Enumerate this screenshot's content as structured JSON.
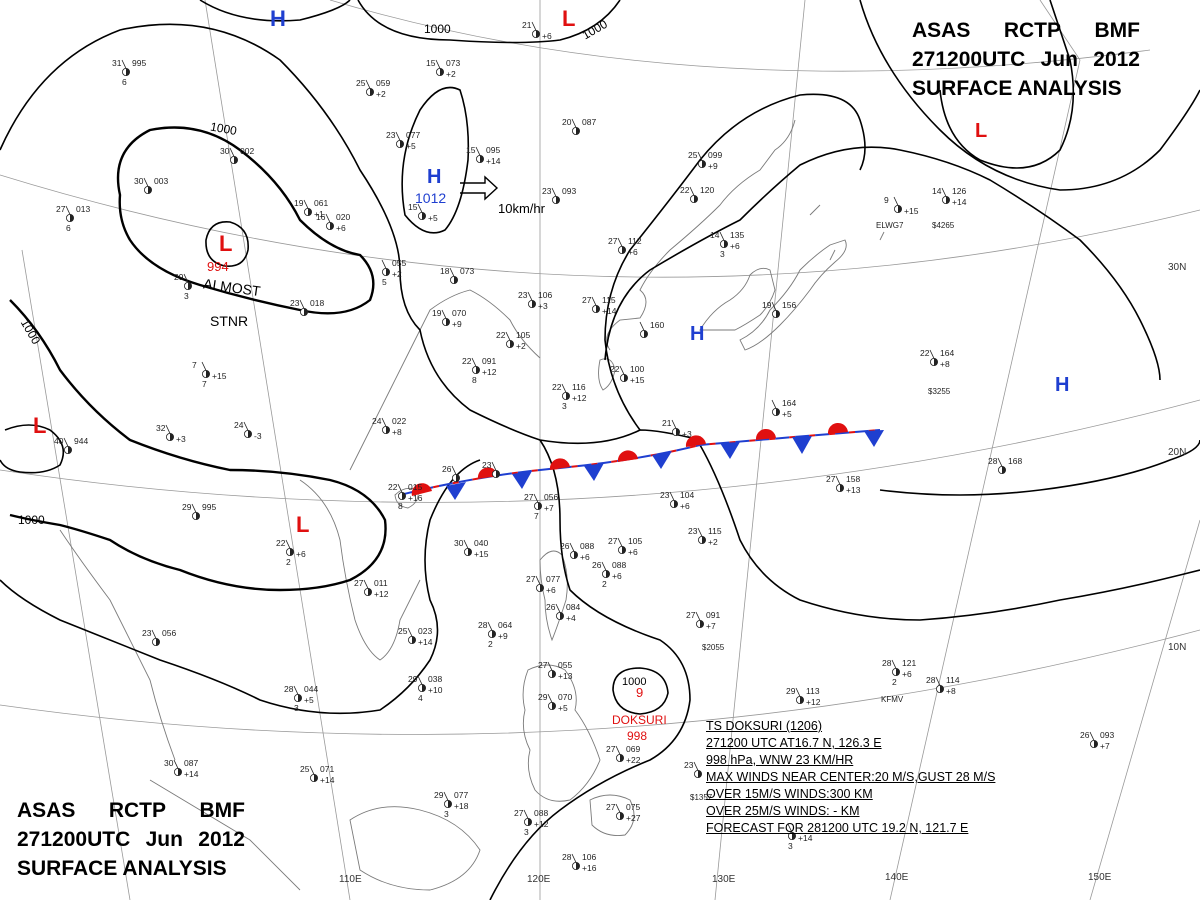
{
  "header": {
    "agency": "ASAS",
    "station": "RCTP",
    "office": "BMF",
    "datetime": "271200UTC",
    "month": "Jun",
    "year": "2012",
    "title": "SURFACE ANALYSIS"
  },
  "latitude_labels": [
    "30N",
    "20N",
    "10N"
  ],
  "longitude_labels": [
    "110E",
    "120E",
    "130E",
    "140E",
    "150E"
  ],
  "isobar_labels": [
    "1000",
    "1000",
    "1000",
    "1000",
    "1000"
  ],
  "pressure_centers": [
    {
      "type": "H",
      "value": "",
      "color": "#1f3fd0"
    },
    {
      "type": "L",
      "value": "",
      "color": "#e01010"
    },
    {
      "type": "H",
      "value": "1012",
      "color": "#1f3fd0"
    },
    {
      "type": "L",
      "value": "994",
      "color": "#e01010"
    },
    {
      "type": "L",
      "value": "",
      "color": "#e01010"
    },
    {
      "type": "L",
      "value": "",
      "color": "#e01010"
    },
    {
      "type": "L",
      "value": "",
      "color": "#e01010"
    },
    {
      "type": "H",
      "value": "",
      "color": "#1f3fd0"
    },
    {
      "type": "H",
      "value": "",
      "color": "#1f3fd0"
    }
  ],
  "annotations": {
    "almost": "ALMOST",
    "stnr": "STNR",
    "speed": "10km/hr",
    "typhoon_name": "DOKSURI",
    "typhoon_pressure": "998",
    "typhoon_isobar": "1000",
    "typhoon_symbol": "9"
  },
  "storm_info": [
    "TS DOKSURI (1206)",
    "271200 UTC  AT16.7 N, 126.3 E",
    "998 hPa, WNW  23 KM/HR",
    "MAX WINDS NEAR CENTER:20 M/S,GUST 28 M/S",
    "OVER 15M/S WINDS:300 KM",
    "OVER 25M/S WINDS:  - KM",
    "FORECAST FOR 281200 UTC 19.2 N, 121.7 E"
  ],
  "station_obs": [
    {
      "t": "31",
      "p": "995",
      "d": "",
      "w": "6"
    },
    {
      "t": "25",
      "p": "059",
      "d": "+2",
      "w": ""
    },
    {
      "t": "15",
      "p": "073",
      "d": "+2",
      "w": ""
    },
    {
      "t": "21",
      "p": "",
      "d": "+6",
      "w": ""
    },
    {
      "t": "23",
      "p": "077",
      "d": "+5",
      "w": ""
    },
    {
      "t": "15",
      "p": "095",
      "d": "+14",
      "w": ""
    },
    {
      "t": "20",
      "p": "087",
      "d": "",
      "w": ""
    },
    {
      "t": "30",
      "p": "003",
      "d": "",
      "w": ""
    },
    {
      "t": "30",
      "p": "002",
      "d": "",
      "w": ""
    },
    {
      "t": "27",
      "p": "013",
      "d": "",
      "w": "6"
    },
    {
      "t": "19",
      "p": "061",
      "d": "+1",
      "w": ""
    },
    {
      "t": "16",
      "p": "020",
      "d": "+6",
      "w": ""
    },
    {
      "t": "15",
      "p": "",
      "d": "+5",
      "w": ""
    },
    {
      "t": "23",
      "p": "093",
      "d": "",
      "w": ""
    },
    {
      "t": "25",
      "p": "099",
      "d": "+9",
      "w": ""
    },
    {
      "t": "22",
      "p": "120",
      "d": "",
      "w": ""
    },
    {
      "t": "14",
      "p": "135",
      "d": "+6",
      "w": "3"
    },
    {
      "t": "27",
      "p": "112",
      "d": "+6",
      "w": ""
    },
    {
      "t": "29",
      "p": "",
      "d": "",
      "w": "3"
    },
    {
      "t": "",
      "p": "055",
      "d": "+2",
      "w": "5"
    },
    {
      "t": "18",
      "p": "073",
      "d": "",
      "w": ""
    },
    {
      "t": "23",
      "p": "018",
      "d": "",
      "w": ""
    },
    {
      "t": "23",
      "p": "106",
      "d": "+3",
      "w": ""
    },
    {
      "t": "27",
      "p": "115",
      "d": "+14",
      "w": ""
    },
    {
      "t": "19",
      "p": "070",
      "d": "+9",
      "w": ""
    },
    {
      "t": "22",
      "p": "105",
      "d": "+2",
      "w": ""
    },
    {
      "t": "22",
      "p": "091",
      "d": "+12",
      "w": "8"
    },
    {
      "t": "22",
      "p": "116",
      "d": "+12",
      "w": "3"
    },
    {
      "t": "22",
      "p": "100",
      "d": "+15",
      "w": ""
    },
    {
      "t": "",
      "p": "160",
      "d": "",
      "w": ""
    },
    {
      "t": "19",
      "p": "156",
      "d": "",
      "w": ""
    },
    {
      "t": "7",
      "p": "",
      "d": "+15",
      "w": "7"
    },
    {
      "t": "22",
      "p": "164",
      "d": "+8",
      "w": ""
    },
    {
      "t": "9",
      "p": "",
      "d": "+15",
      "w": ""
    },
    {
      "t": "14",
      "p": "126",
      "d": "+14",
      "w": ""
    },
    {
      "t": "24",
      "p": "",
      "d": "-3",
      "w": ""
    },
    {
      "t": "32",
      "p": "",
      "d": "+3",
      "w": ""
    },
    {
      "t": "24",
      "p": "022",
      "d": "+8",
      "w": ""
    },
    {
      "t": "40",
      "p": "944",
      "d": "",
      "w": ""
    },
    {
      "t": "21",
      "p": "",
      "d": "+3",
      "w": ""
    },
    {
      "t": "",
      "p": "164",
      "d": "+5",
      "w": ""
    },
    {
      "t": "26",
      "p": "",
      "d": "",
      "w": ""
    },
    {
      "t": "23",
      "p": "",
      "d": "",
      "w": ""
    },
    {
      "t": "27",
      "p": "158",
      "d": "+13",
      "w": ""
    },
    {
      "t": "28",
      "p": "168",
      "d": "",
      "w": ""
    },
    {
      "t": "22",
      "p": "015",
      "d": "+16",
      "w": "8"
    },
    {
      "t": "27",
      "p": "056",
      "d": "+7",
      "w": "7"
    },
    {
      "t": "23",
      "p": "104",
      "d": "+6",
      "w": ""
    },
    {
      "t": "29",
      "p": "995",
      "d": "",
      "w": ""
    },
    {
      "t": "22",
      "p": "",
      "d": "+6",
      "w": "2"
    },
    {
      "t": "30",
      "p": "040",
      "d": "+15",
      "w": ""
    },
    {
      "t": "26",
      "p": "088",
      "d": "+6",
      "w": ""
    },
    {
      "t": "27",
      "p": "105",
      "d": "+6",
      "w": ""
    },
    {
      "t": "23",
      "p": "115",
      "d": "+2",
      "w": ""
    },
    {
      "t": "27",
      "p": "011",
      "d": "+12",
      "w": ""
    },
    {
      "t": "27",
      "p": "077",
      "d": "+6",
      "w": ""
    },
    {
      "t": "26",
      "p": "088",
      "d": "+6",
      "w": "2"
    },
    {
      "t": "26",
      "p": "084",
      "d": "+4",
      "w": ""
    },
    {
      "t": "27",
      "p": "091",
      "d": "+7",
      "w": ""
    },
    {
      "t": "23",
      "p": "056",
      "d": "",
      "w": ""
    },
    {
      "t": "25",
      "p": "023",
      "d": "+14",
      "w": ""
    },
    {
      "t": "28",
      "p": "064",
      "d": "+9",
      "w": "2"
    },
    {
      "t": "29",
      "p": "038",
      "d": "+10",
      "w": "4"
    },
    {
      "t": "27",
      "p": "055",
      "d": "+13",
      "w": ""
    },
    {
      "t": "28",
      "p": "121",
      "d": "+6",
      "w": "2"
    },
    {
      "t": "28",
      "p": "114",
      "d": "+8",
      "w": ""
    },
    {
      "t": "28",
      "p": "044",
      "d": "+5",
      "w": "3"
    },
    {
      "t": "29",
      "p": "070",
      "d": "+5",
      "w": ""
    },
    {
      "t": "29",
      "p": "113",
      "d": "+12",
      "w": ""
    },
    {
      "t": "27",
      "p": "069",
      "d": "+22",
      "w": ""
    },
    {
      "t": "26",
      "p": "093",
      "d": "+7",
      "w": ""
    },
    {
      "t": "25",
      "p": "071",
      "d": "+14",
      "w": ""
    },
    {
      "t": "30",
      "p": "087",
      "d": "+14",
      "w": ""
    },
    {
      "t": "29",
      "p": "077",
      "d": "+18",
      "w": "3"
    },
    {
      "t": "27",
      "p": "088",
      "d": "+12",
      "w": "3"
    },
    {
      "t": "27",
      "p": "075",
      "d": "+27",
      "w": ""
    },
    {
      "t": "23",
      "p": "",
      "d": "",
      "w": ""
    },
    {
      "t": "28",
      "p": "106",
      "d": "+16",
      "w": ""
    },
    {
      "t": "",
      "p": "",
      "d": "+14",
      "w": "3"
    }
  ],
  "station_tags": [
    "ELWG7",
    "$4265",
    "$3255",
    "$2055",
    "KFMV",
    "$1357"
  ],
  "colors": {
    "high": "#1f3fd0",
    "low": "#e01010",
    "isobar": "#000000",
    "grid": "#999999",
    "coast": "#7a7a7a",
    "front_warm": "#e01010",
    "front_cold": "#1f3fd0"
  }
}
